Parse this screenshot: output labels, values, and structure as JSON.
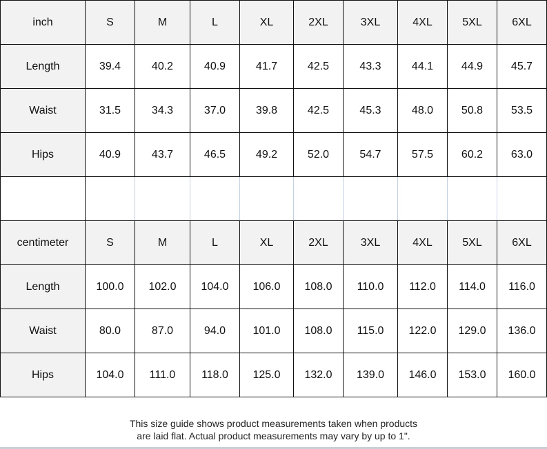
{
  "sizes": [
    "S",
    "M",
    "L",
    "XL",
    "2XL",
    "3XL",
    "4XL",
    "5XL",
    "6XL"
  ],
  "tables": [
    {
      "unit": "inch",
      "rows": [
        {
          "label": "Length",
          "values": [
            "39.4",
            "40.2",
            "40.9",
            "41.7",
            "42.5",
            "43.3",
            "44.1",
            "44.9",
            "45.7"
          ]
        },
        {
          "label": "Waist",
          "values": [
            "31.5",
            "34.3",
            "37.0",
            "39.8",
            "42.5",
            "45.3",
            "48.0",
            "50.8",
            "53.5"
          ]
        },
        {
          "label": "Hips",
          "values": [
            "40.9",
            "43.7",
            "46.5",
            "49.2",
            "52.0",
            "54.7",
            "57.5",
            "60.2",
            "63.0"
          ]
        }
      ]
    },
    {
      "unit": "centimeter",
      "rows": [
        {
          "label": "Length",
          "values": [
            "100.0",
            "102.0",
            "104.0",
            "106.0",
            "108.0",
            "110.0",
            "112.0",
            "114.0",
            "116.0"
          ]
        },
        {
          "label": "Waist",
          "values": [
            "80.0",
            "87.0",
            "94.0",
            "101.0",
            "108.0",
            "115.0",
            "122.0",
            "129.0",
            "136.0"
          ]
        },
        {
          "label": "Hips",
          "values": [
            "104.0",
            "111.0",
            "118.0",
            "125.0",
            "132.0",
            "139.0",
            "146.0",
            "153.0",
            "160.0"
          ]
        }
      ]
    }
  ],
  "footer": {
    "line1": "This size guide shows product measurements taken when products",
    "line2": "are laid flat. Actual product measurements may vary by up to 1\"."
  },
  "colors": {
    "header_bg": "#f2f2f2",
    "border": "#111111"
  }
}
